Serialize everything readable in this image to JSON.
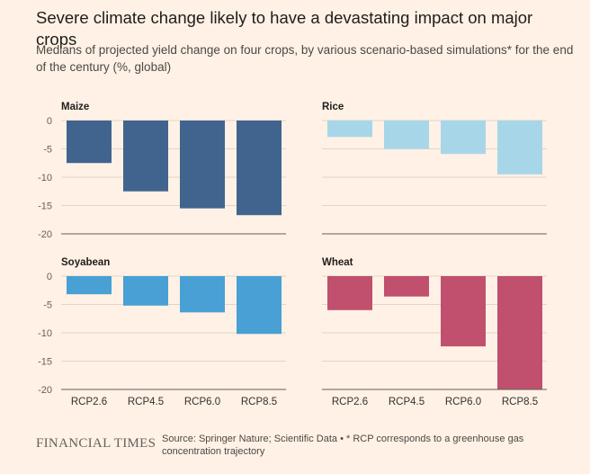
{
  "title": "Severe climate change likely to have a devastating impact on major crops",
  "subtitle": "Medians of projected yield change on four crops, by various scenario-based simulations* for the end of the century (%, global)",
  "logo": "FINANCIAL TIMES",
  "source": "Source: Springer Nature; Scientific Data • * RCP corresponds to a greenhouse gas concentration trajectory",
  "chart_data": [
    {
      "type": "bar",
      "title": "Maize",
      "color": "#41648f",
      "categories": [
        "RCP2.6",
        "RCP4.5",
        "RCP6.0",
        "RCP8.5"
      ],
      "values": [
        -7.5,
        -12.5,
        -15.5,
        -16.7
      ],
      "ylim": [
        -20,
        0
      ],
      "yticks": [
        0,
        -5,
        -10,
        -15,
        -20
      ],
      "ytick_labels": [
        "0",
        "-5",
        "-10",
        "-15",
        "-20"
      ],
      "xtick_labels": [
        "",
        "",
        "",
        ""
      ],
      "grid": true
    },
    {
      "type": "bar",
      "title": "Rice",
      "color": "#a8d6e9",
      "categories": [
        "RCP2.6",
        "RCP4.5",
        "RCP6.0",
        "RCP8.5"
      ],
      "values": [
        -2.9,
        -5.0,
        -5.9,
        -9.5
      ],
      "ylim": [
        -20,
        0
      ],
      "yticks": [
        0,
        -5,
        -10,
        -15,
        -20
      ],
      "ytick_labels": [
        "",
        "",
        "",
        "",
        ""
      ],
      "xtick_labels": [
        "",
        "",
        "",
        ""
      ],
      "grid": true
    },
    {
      "type": "bar",
      "title": "Soyabean",
      "color": "#48a0d4",
      "categories": [
        "RCP2.6",
        "RCP4.5",
        "RCP6.0",
        "RCP8.5"
      ],
      "values": [
        -3.2,
        -5.2,
        -6.4,
        -10.2
      ],
      "ylim": [
        -20,
        0
      ],
      "yticks": [
        0,
        -5,
        -10,
        -15,
        -20
      ],
      "ytick_labels": [
        "0",
        "-5",
        "-10",
        "-15",
        "-20"
      ],
      "xtick_labels": [
        "RCP2.6",
        "RCP4.5",
        "RCP6.0",
        "RCP8.5"
      ],
      "grid": true
    },
    {
      "type": "bar",
      "title": "Wheat",
      "color": "#c0506e",
      "categories": [
        "RCP2.6",
        "RCP4.5",
        "RCP6.0",
        "RCP8.5"
      ],
      "values": [
        -6.0,
        -3.6,
        -12.4,
        -20.0
      ],
      "ylim": [
        -20,
        0
      ],
      "yticks": [
        0,
        -5,
        -10,
        -15,
        -20
      ],
      "ytick_labels": [
        "",
        "",
        "",
        "",
        ""
      ],
      "xtick_labels": [
        "RCP2.6",
        "RCP4.5",
        "RCP6.0",
        "RCP8.5"
      ],
      "grid": true
    }
  ]
}
